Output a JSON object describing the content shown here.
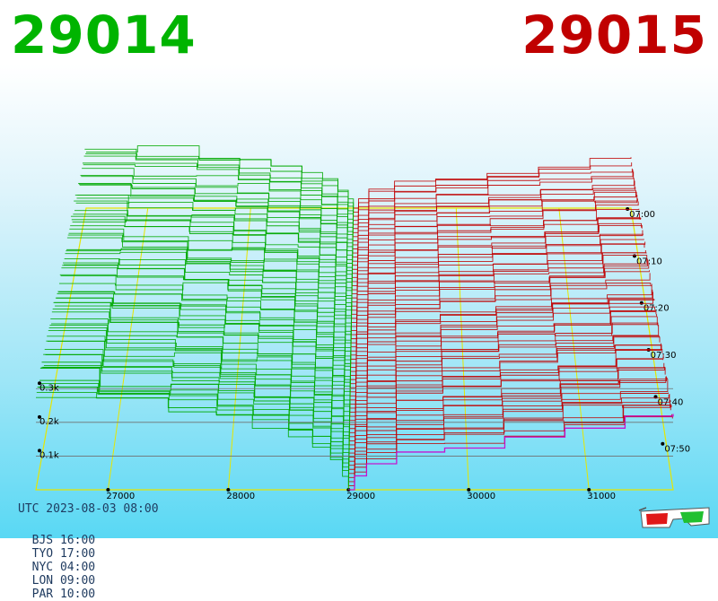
{
  "prices": {
    "bid": "29014",
    "ask": "29015",
    "bid_color": "#00b400",
    "ask_color": "#c00000"
  },
  "clock": {
    "utc": "UTC 2023-08-03 08:00",
    "zones": [
      "BJS 16:00",
      "TYO 17:00",
      "NYC 04:00",
      "LON 09:00",
      "PAR 10:00"
    ]
  },
  "chart_data": {
    "type": "area",
    "x_ticks": [
      "27000",
      "28000",
      "29000",
      "30000",
      "31000"
    ],
    "y_ticks": [
      "0.1k",
      "0.2k",
      "0.3k"
    ],
    "time_ticks": [
      "07:00",
      "07:10",
      "07:20",
      "07:30",
      "07:40",
      "07:50"
    ],
    "series": [
      {
        "color": "#00a800",
        "x": [
          26400,
          26900,
          27500,
          27900,
          28200,
          28500,
          28700,
          28850,
          28950,
          29000
        ],
        "cumulative_depth": [
          0.26,
          0.24,
          0.22,
          0.2,
          0.18,
          0.15,
          0.12,
          0.08,
          0.04,
          0.0
        ]
      },
      {
        "color": "#c00000",
        "x": [
          29000,
          29050,
          29150,
          29400,
          29800,
          30300,
          30800,
          31300,
          31700
        ],
        "cumulative_depth": [
          0.0,
          0.04,
          0.08,
          0.11,
          0.13,
          0.15,
          0.17,
          0.19,
          0.2
        ]
      }
    ],
    "colors": {
      "bid_lines": "#00a800",
      "ask_lines": "#c00000",
      "newest_ask_line": "#cc00cc",
      "grid": "#e6e600",
      "axis": "#707070"
    }
  }
}
